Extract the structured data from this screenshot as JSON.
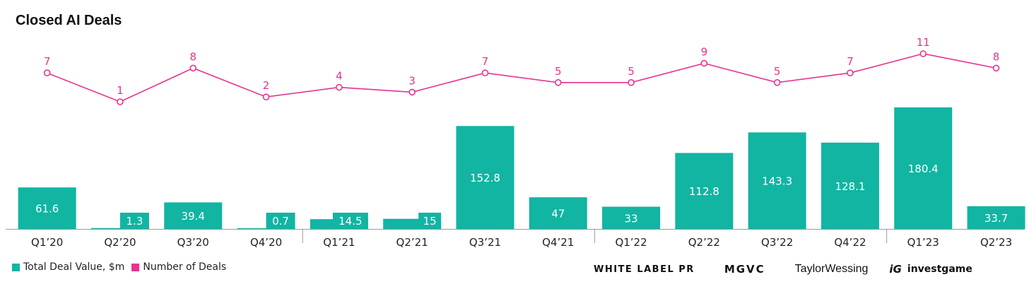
{
  "title": "Closed AI Deals",
  "colors": {
    "bars": "#11b5a2",
    "line": "#e5348e"
  },
  "legend": {
    "value_label": "Total Deal Value, $m",
    "count_label": "Number of Deals"
  },
  "logos": {
    "white_label": "WHITE LABEL PR",
    "mgvc": "MGVC",
    "taylor_wessing": "TaylorWessing",
    "investgame": "investgame",
    "investgame_mark": "iG"
  },
  "chart_data": {
    "type": "bar",
    "title": "Closed AI Deals",
    "categories": [
      "Q1’20",
      "Q2’20",
      "Q3’20",
      "Q4’20",
      "Q1’21",
      "Q2’21",
      "Q3’21",
      "Q4’21",
      "Q1’22",
      "Q2’22",
      "Q3’22",
      "Q4’22",
      "Q1’23",
      "Q2’23"
    ],
    "series": [
      {
        "name": "Total Deal Value, $m",
        "type": "bar",
        "values": [
          61.6,
          1.3,
          39.4,
          0.7,
          14.5,
          15,
          152.8,
          47,
          33,
          112.8,
          143.3,
          128.1,
          180.4,
          33.7
        ],
        "labels": [
          "61.6",
          "1.3",
          "39.4",
          "0.7",
          "14.5",
          "15",
          "152.8",
          "47",
          "33",
          "112.8",
          "143.3",
          "128.1",
          "180.4",
          "33.7"
        ]
      },
      {
        "name": "Number of Deals",
        "type": "line",
        "values": [
          7,
          1,
          8,
          2,
          4,
          3,
          7,
          5,
          5,
          9,
          5,
          7,
          11,
          8
        ]
      }
    ],
    "ylim": [
      0,
      180.4
    ],
    "grid": false,
    "legend_position": "bottom-left"
  }
}
